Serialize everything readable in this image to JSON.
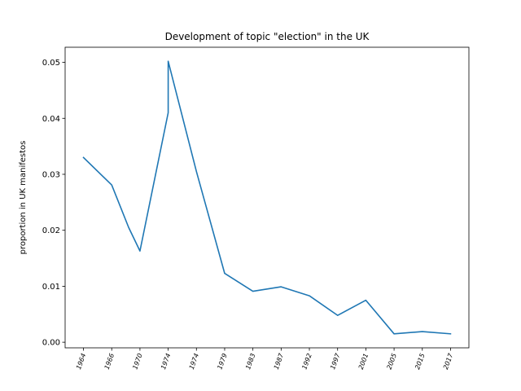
{
  "chart_data": {
    "type": "line",
    "title": "Development of topic \"election\" in the UK",
    "xlabel": "",
    "ylabel": "proportion in UK manifestos",
    "categories": [
      "1964",
      "1966",
      "1970",
      "1974",
      "1974",
      "1979",
      "1983",
      "1987",
      "1992",
      "1997",
      "2001",
      "2005",
      "2015",
      "2017"
    ],
    "points": [
      {
        "x": 0,
        "y": 0.033
      },
      {
        "x": 1,
        "y": 0.0281
      },
      {
        "x": 1.6,
        "y": 0.0205
      },
      {
        "x": 2,
        "y": 0.0163
      },
      {
        "x": 3,
        "y": 0.041
      },
      {
        "x": 3,
        "y": 0.0502
      },
      {
        "x": 4,
        "y": 0.0305
      },
      {
        "x": 5,
        "y": 0.0123
      },
      {
        "x": 6,
        "y": 0.0091
      },
      {
        "x": 7,
        "y": 0.0099
      },
      {
        "x": 8,
        "y": 0.0083
      },
      {
        "x": 9,
        "y": 0.0048
      },
      {
        "x": 10,
        "y": 0.0075
      },
      {
        "x": 11,
        "y": 0.0015
      },
      {
        "x": 12,
        "y": 0.0019
      },
      {
        "x": 13,
        "y": 0.0015
      }
    ],
    "yticks": [
      "0.00",
      "0.01",
      "0.02",
      "0.03",
      "0.04",
      "0.05"
    ],
    "ytick_values": [
      0,
      0.01,
      0.02,
      0.03,
      0.04,
      0.05
    ],
    "ylim": [
      -0.001,
      0.0527
    ],
    "xlim": [
      -0.65,
      13.65
    ],
    "grid": false,
    "line_color": "#1f77b4"
  }
}
